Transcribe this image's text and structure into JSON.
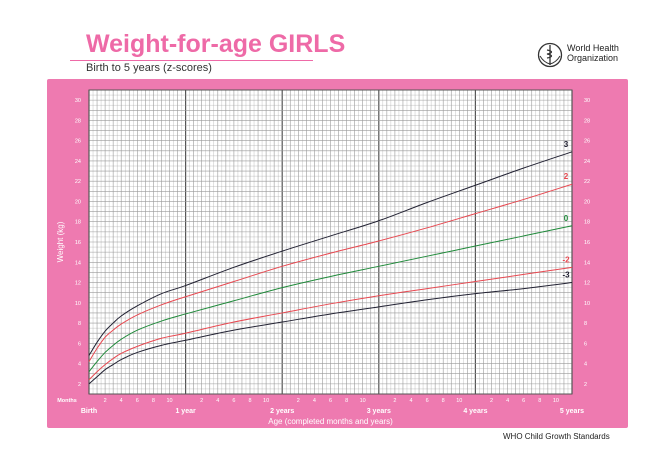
{
  "header": {
    "title": "Weight-for-age GIRLS",
    "subtitle": "Birth to 5 years (z-scores)",
    "org_line1": "World Health",
    "org_line2": "Organization"
  },
  "footer": {
    "text": "WHO Child Growth Standards"
  },
  "colors": {
    "frame": "#ee7ab0",
    "title": "#ee6aa7",
    "grid": "#9a9a9a",
    "z3": "#222233",
    "z2": "#e84850",
    "z0": "#1f8a3a"
  },
  "chart_data": {
    "type": "line",
    "title": "Weight-for-age GIRLS",
    "subtitle": "Birth to 5 years (z-scores)",
    "xlabel": "Age (completed months and years)",
    "ylabel": "Weight (kg)",
    "x_unit_label": "Months",
    "xlim": [
      0,
      60
    ],
    "ylim": [
      1,
      31
    ],
    "y_ticks": [
      2,
      4,
      6,
      8,
      10,
      12,
      14,
      16,
      18,
      20,
      22,
      24,
      26,
      28,
      30
    ],
    "x_month_ticks": [
      "2",
      "4",
      "6",
      "8",
      "10",
      "2",
      "4",
      "6",
      "8",
      "10",
      "2",
      "4",
      "6",
      "8",
      "10",
      "2",
      "4",
      "6",
      "8",
      "10",
      "2",
      "4",
      "6",
      "8",
      "10"
    ],
    "x_year_labels": [
      {
        "month": 0,
        "label": "Birth"
      },
      {
        "month": 12,
        "label": "1 year"
      },
      {
        "month": 24,
        "label": "2 years"
      },
      {
        "month": 36,
        "label": "3 years"
      },
      {
        "month": 48,
        "label": "4 years"
      },
      {
        "month": 60,
        "label": "5 years"
      }
    ],
    "grid": true,
    "x": [
      0,
      1,
      2,
      3,
      4,
      6,
      9,
      12,
      18,
      24,
      30,
      36,
      42,
      48,
      54,
      60
    ],
    "series": [
      {
        "name": "3",
        "color": "#222233",
        "values": [
          4.8,
          6.1,
          7.2,
          8.0,
          8.7,
          9.7,
          10.9,
          11.7,
          13.5,
          15.1,
          16.6,
          18.1,
          19.9,
          21.6,
          23.3,
          24.9
        ]
      },
      {
        "name": "2",
        "color": "#e84850",
        "values": [
          4.2,
          5.5,
          6.6,
          7.3,
          7.9,
          8.8,
          9.8,
          10.6,
          12.1,
          13.6,
          14.9,
          16.1,
          17.4,
          18.8,
          20.2,
          21.7
        ]
      },
      {
        "name": "0",
        "color": "#1f8a3a",
        "values": [
          3.2,
          4.2,
          5.1,
          5.8,
          6.4,
          7.3,
          8.2,
          8.9,
          10.2,
          11.5,
          12.6,
          13.6,
          14.6,
          15.6,
          16.6,
          17.6
        ]
      },
      {
        "name": "-2",
        "color": "#e84850",
        "values": [
          2.4,
          3.2,
          3.9,
          4.5,
          5.0,
          5.7,
          6.5,
          7.0,
          8.1,
          9.0,
          9.9,
          10.7,
          11.4,
          12.1,
          12.8,
          13.5
        ]
      },
      {
        "name": "-3",
        "color": "#222233",
        "values": [
          2.0,
          2.7,
          3.4,
          3.9,
          4.4,
          5.1,
          5.8,
          6.3,
          7.3,
          8.1,
          8.9,
          9.6,
          10.3,
          10.9,
          11.4,
          12.0
        ]
      }
    ]
  }
}
